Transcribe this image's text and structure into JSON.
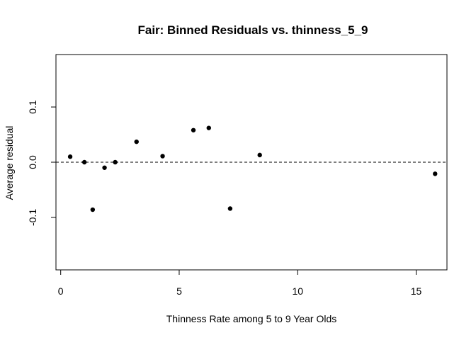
{
  "chart_data": {
    "type": "scatter",
    "title": "Fair: Binned Residuals vs. thinness_5_9",
    "xlabel": "Thinness Rate among 5 to 9 Year Olds",
    "ylabel": "Average residual",
    "xlim": [
      -0.2,
      16.3
    ],
    "ylim": [
      -0.195,
      0.195
    ],
    "xticks": [
      0,
      5,
      10,
      15
    ],
    "xtick_labels": [
      "0",
      "5",
      "10",
      "15"
    ],
    "yticks": [
      -0.1,
      0.0,
      0.1
    ],
    "ytick_labels": [
      "-0.1",
      "0.0",
      "0.1"
    ],
    "reference_line": {
      "y": 0,
      "style": "dashed"
    },
    "grid": false,
    "points": [
      {
        "x": 0.4,
        "y": 0.01
      },
      {
        "x": 1.0,
        "y": 0.0
      },
      {
        "x": 1.35,
        "y": -0.086
      },
      {
        "x": 1.85,
        "y": -0.01
      },
      {
        "x": 2.3,
        "y": 0.0
      },
      {
        "x": 3.2,
        "y": 0.037
      },
      {
        "x": 4.3,
        "y": 0.011
      },
      {
        "x": 5.6,
        "y": 0.058
      },
      {
        "x": 6.25,
        "y": 0.062
      },
      {
        "x": 7.15,
        "y": -0.084
      },
      {
        "x": 8.4,
        "y": 0.013
      },
      {
        "x": 15.8,
        "y": -0.021
      }
    ]
  }
}
